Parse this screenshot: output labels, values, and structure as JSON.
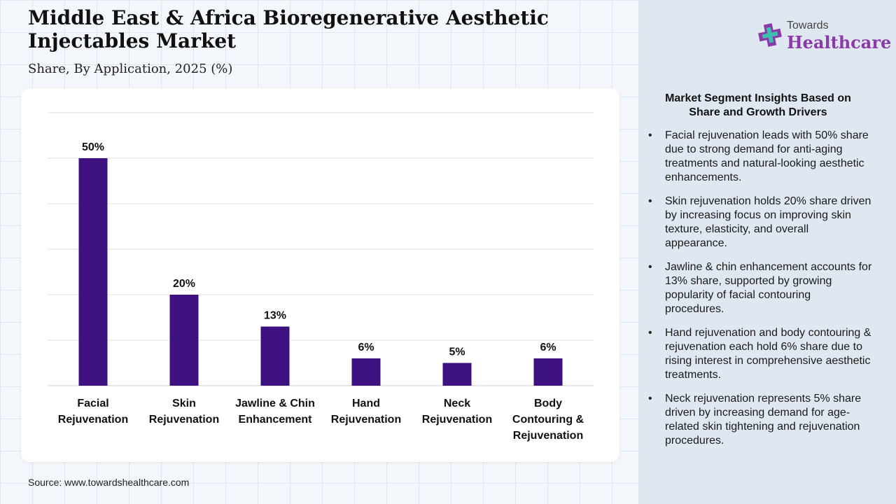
{
  "header": {
    "title": "Middle East & Africa Bioregenerative Aesthetic Injectables Market",
    "subtitle": "Share, By Application, 2025 (%)"
  },
  "logo": {
    "top": "Towards",
    "bottom": "Healthcare",
    "icon": "medical-cross-icon"
  },
  "colors": {
    "bar": "#3d1180",
    "logo_accent": "#8a3aa8"
  },
  "chart_data": {
    "type": "bar",
    "title": "Middle East & Africa Bioregenerative Aesthetic Injectables Market",
    "subtitle": "Share, By Application, 2025 (%)",
    "categories": [
      [
        "Facial",
        "Rejuvenation"
      ],
      [
        "Skin",
        "Rejuvenation"
      ],
      [
        "Jawline & Chin",
        "Enhancement"
      ],
      [
        "Hand",
        "Rejuvenation"
      ],
      [
        "Neck",
        "Rejuvenation"
      ],
      [
        "Body",
        "Contouring &",
        "Rejuvenation"
      ]
    ],
    "values": [
      50,
      20,
      13,
      6,
      5,
      6
    ],
    "value_labels": [
      "50%",
      "20%",
      "13%",
      "6%",
      "5%",
      "6%"
    ],
    "ylim": [
      0,
      60
    ],
    "grid": true,
    "legend": "none"
  },
  "insights": {
    "title": "Market Segment Insights Based on Share and Growth Drivers",
    "items": [
      "Facial rejuvenation leads with 50% share due to strong demand for anti-aging treatments and natural-looking aesthetic enhancements.",
      "Skin rejuvenation holds 20% share driven by increasing focus on improving skin texture, elasticity, and overall appearance.",
      "Jawline & chin enhancement accounts for 13% share, supported by growing popularity of facial contouring procedures.",
      "Hand rejuvenation and body contouring & rejuvenation each hold 6% share due to rising interest in comprehensive aesthetic treatments.",
      "Neck rejuvenation represents 5% share driven by increasing demand for age-related skin tightening and rejuvenation procedures."
    ]
  },
  "source": "Source: www.towardshealthcare.com"
}
